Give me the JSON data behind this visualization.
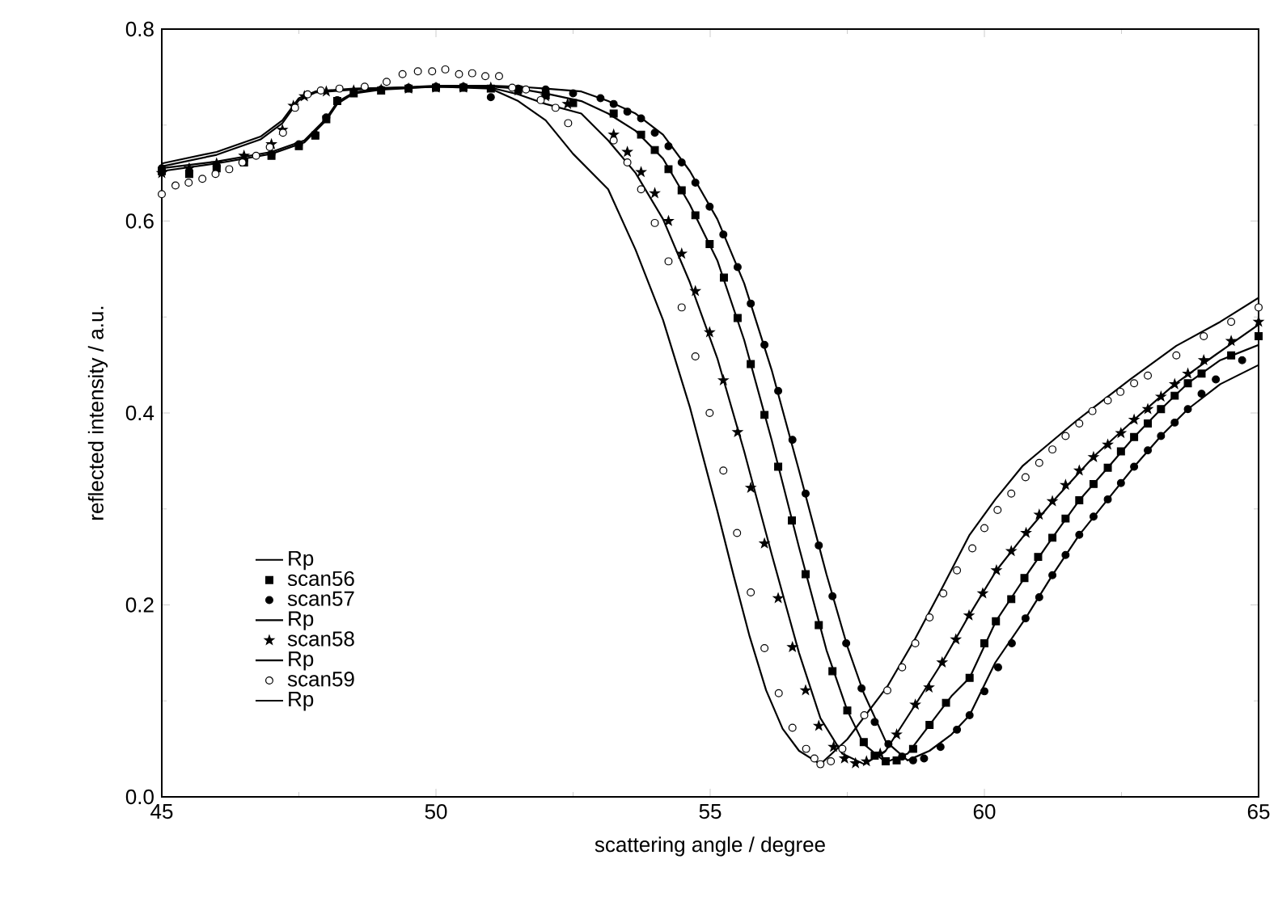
{
  "chart_data": {
    "type": "line",
    "xlabel": "scattering angle / degree",
    "ylabel": "reflected intensity / a.u.",
    "xlim": [
      45,
      65
    ],
    "ylim": [
      0,
      0.8
    ],
    "xticks": [
      45,
      50,
      55,
      60,
      65
    ],
    "yticks": [
      {
        "value": 0,
        "label": "0.0"
      },
      {
        "value": 0.2,
        "label": "0.2"
      },
      {
        "value": 0.4,
        "label": "0.4"
      },
      {
        "value": 0.6,
        "label": "0.6"
      },
      {
        "value": 0.8,
        "label": "0.8"
      }
    ],
    "grid": false,
    "legend": "bottom left",
    "series": [
      {
        "name": "Rp",
        "color": "#000000",
        "marker": "none",
        "line_style": "solid",
        "x": [
          45,
          46,
          47,
          47.6,
          48.0,
          48.2,
          48.5,
          49,
          50,
          51,
          51.5,
          52,
          52.65,
          53.14,
          53.64,
          54.14,
          54.63,
          55.13,
          55.62,
          56.12,
          56.62,
          57.12,
          57.5,
          57.8,
          58.2,
          58.6,
          59.0,
          59.4,
          59.73,
          60.21,
          60.73,
          61.24,
          61.73,
          62.25,
          62.73,
          63.22,
          63.71,
          64.3,
          65
        ],
        "values": [
          0.652,
          0.66,
          0.67,
          0.682,
          0.705,
          0.722,
          0.733,
          0.737,
          0.74,
          0.74,
          0.738,
          0.733,
          0.725,
          0.712,
          0.694,
          0.665,
          0.617,
          0.559,
          0.476,
          0.372,
          0.26,
          0.153,
          0.09,
          0.055,
          0.036,
          0.045,
          0.075,
          0.105,
          0.124,
          0.183,
          0.228,
          0.27,
          0.309,
          0.343,
          0.375,
          0.404,
          0.431,
          0.455,
          0.471
        ]
      },
      {
        "name": "scan56",
        "type": "scatter",
        "color": "#000000",
        "marker": "square",
        "x": [
          45,
          45.5,
          46,
          46.5,
          47,
          47.5,
          47.8,
          48,
          48.2,
          48.5,
          49,
          49.5,
          50,
          50.5,
          51,
          51.5,
          52,
          52.5,
          53.24,
          53.74,
          53.99,
          54.24,
          54.48,
          54.73,
          54.99,
          55.25,
          55.5,
          55.74,
          55.99,
          56.24,
          56.49,
          56.74,
          56.98,
          57.23,
          57.5,
          57.8,
          58.0,
          58.2,
          58.4,
          58.7,
          59.0,
          59.3,
          59.73,
          60.0,
          60.21,
          60.49,
          60.73,
          60.98,
          61.24,
          61.48,
          61.73,
          61.99,
          62.25,
          62.49,
          62.73,
          62.98,
          63.22,
          63.47,
          63.71,
          63.96,
          64.5,
          65
        ],
        "values": [
          0.652,
          0.649,
          0.655,
          0.661,
          0.668,
          0.678,
          0.689,
          0.706,
          0.725,
          0.733,
          0.736,
          0.738,
          0.739,
          0.739,
          0.738,
          0.737,
          0.731,
          0.723,
          0.712,
          0.69,
          0.674,
          0.654,
          0.632,
          0.606,
          0.576,
          0.541,
          0.499,
          0.451,
          0.398,
          0.344,
          0.288,
          0.232,
          0.179,
          0.131,
          0.09,
          0.057,
          0.043,
          0.037,
          0.038,
          0.05,
          0.075,
          0.098,
          0.124,
          0.16,
          0.183,
          0.206,
          0.228,
          0.25,
          0.27,
          0.29,
          0.309,
          0.326,
          0.343,
          0.36,
          0.375,
          0.389,
          0.404,
          0.418,
          0.431,
          0.441,
          0.46,
          0.48
        ]
      },
      {
        "name": "scan57",
        "type": "scatter",
        "color": "#000000",
        "marker": "circle",
        "x": [
          45,
          45.5,
          46,
          46.5,
          47,
          47.5,
          47.8,
          48,
          48.2,
          48.5,
          49,
          49.5,
          50,
          50.5,
          51,
          51.5,
          52,
          52.5,
          53,
          53.24,
          53.49,
          53.74,
          53.99,
          54.24,
          54.48,
          54.73,
          54.99,
          55.24,
          55.5,
          55.74,
          55.99,
          56.24,
          56.5,
          56.74,
          56.98,
          57.23,
          57.48,
          57.76,
          58.0,
          58.25,
          58.5,
          58.7,
          58.9,
          59.2,
          59.5,
          59.73,
          60.0,
          60.25,
          60.5,
          60.75,
          61.0,
          61.24,
          61.48,
          61.73,
          61.99,
          62.25,
          62.49,
          62.73,
          62.98,
          63.22,
          63.47,
          63.71,
          63.96,
          64.22,
          64.7
        ],
        "values": [
          0.655,
          0.652,
          0.657,
          0.663,
          0.67,
          0.68,
          0.69,
          0.708,
          0.726,
          null,
          0.737,
          0.739,
          0.74,
          0.74,
          0.729,
          0.738,
          0.737,
          0.733,
          0.728,
          0.722,
          0.714,
          0.707,
          0.692,
          0.678,
          0.661,
          0.64,
          0.615,
          0.586,
          0.552,
          0.514,
          0.471,
          0.423,
          0.372,
          0.316,
          0.262,
          0.209,
          0.16,
          0.113,
          0.078,
          0.055,
          0.042,
          0.038,
          0.04,
          0.052,
          0.07,
          0.085,
          0.11,
          0.135,
          0.16,
          0.186,
          0.208,
          0.231,
          0.252,
          0.273,
          0.292,
          0.31,
          0.327,
          0.344,
          0.361,
          0.376,
          0.39,
          0.404,
          0.42,
          0.435,
          0.455
        ]
      },
      {
        "name": "Rp",
        "color": "#000000",
        "marker": "none",
        "line_style": "solid",
        "x": [
          45,
          46,
          47,
          47.6,
          48.0,
          48.2,
          48.5,
          49,
          50,
          51,
          51.5,
          52,
          52.65,
          53.14,
          53.64,
          54.14,
          54.63,
          55.13,
          55.62,
          56.12,
          56.62,
          57.12,
          57.5,
          57.8,
          58.2,
          58.6,
          59.0,
          59.4,
          59.73,
          60.2,
          60.75,
          61.24,
          61.73,
          62.25,
          62.73,
          63.22,
          63.71,
          64.3,
          65
        ],
        "values": [
          0.655,
          0.662,
          0.672,
          0.684,
          0.707,
          0.724,
          0.734,
          0.738,
          0.741,
          0.741,
          0.74,
          0.738,
          0.735,
          0.725,
          0.712,
          0.69,
          0.652,
          0.602,
          0.535,
          0.445,
          0.34,
          0.232,
          0.157,
          0.108,
          0.058,
          0.038,
          0.048,
          0.065,
          0.085,
          0.14,
          0.186,
          0.231,
          0.273,
          0.31,
          0.344,
          0.376,
          0.404,
          0.43,
          0.45
        ]
      },
      {
        "name": "scan58",
        "type": "scatter",
        "color": "#000000",
        "marker": "star",
        "x": [
          45,
          45.5,
          46,
          46.5,
          47,
          47.2,
          47.4,
          47.6,
          48,
          48.5,
          49,
          49.5,
          50,
          50.5,
          51,
          51.5,
          52,
          52.4,
          53.24,
          53.49,
          53.74,
          53.99,
          54.24,
          54.48,
          54.73,
          54.99,
          55.24,
          55.5,
          55.74,
          55.99,
          56.24,
          56.5,
          56.74,
          56.98,
          57.25,
          57.45,
          57.65,
          57.85,
          58.1,
          58.4,
          58.74,
          58.99,
          59.23,
          59.48,
          59.72,
          59.97,
          60.22,
          60.49,
          60.76,
          61.0,
          61.24,
          61.48,
          61.73,
          61.99,
          62.25,
          62.49,
          62.73,
          62.98,
          63.22,
          63.47,
          63.71,
          64.0,
          64.5,
          65
        ],
        "values": [
          0.65,
          0.655,
          0.66,
          0.668,
          0.68,
          0.695,
          0.72,
          0.73,
          0.735,
          0.736,
          0.737,
          0.738,
          0.739,
          0.739,
          0.739,
          0.736,
          0.73,
          0.722,
          0.69,
          0.672,
          0.651,
          0.629,
          0.6,
          0.566,
          0.527,
          0.484,
          0.434,
          0.38,
          0.322,
          0.264,
          0.207,
          0.156,
          0.111,
          0.074,
          0.052,
          0.04,
          0.035,
          0.037,
          0.045,
          0.065,
          0.096,
          0.114,
          0.14,
          0.164,
          0.189,
          0.212,
          0.236,
          0.256,
          0.275,
          0.294,
          0.308,
          0.325,
          0.34,
          0.354,
          0.367,
          0.379,
          0.393,
          0.404,
          0.417,
          0.43,
          0.441,
          0.455,
          0.475,
          0.495
        ]
      },
      {
        "name": "Rp",
        "color": "#000000",
        "marker": "none",
        "line_style": "solid",
        "x": [
          45,
          46,
          46.8,
          47.2,
          47.5,
          47.8,
          48.5,
          50,
          51,
          51.5,
          52,
          52.65,
          53.14,
          53.64,
          54.14,
          54.63,
          55.13,
          55.62,
          56.12,
          56.62,
          57.01,
          57.41,
          57.81,
          58.2,
          58.74,
          59.23,
          59.72,
          60.22,
          60.76,
          61.25,
          62.0,
          62.73,
          63.47,
          64.2,
          65
        ],
        "values": [
          0.657,
          0.669,
          0.685,
          0.702,
          0.726,
          0.734,
          0.737,
          0.74,
          0.739,
          0.732,
          0.722,
          0.712,
          0.684,
          0.65,
          0.602,
          0.536,
          0.457,
          0.36,
          0.253,
          0.15,
          0.082,
          0.045,
          0.034,
          0.048,
          0.096,
          0.14,
          0.189,
          0.236,
          0.275,
          0.308,
          0.355,
          0.393,
          0.43,
          0.46,
          0.492
        ]
      },
      {
        "name": "scan59",
        "type": "scatter",
        "color": "#ffffff",
        "marker": "circle",
        "x": [
          45,
          45.25,
          45.49,
          45.74,
          45.98,
          46.23,
          46.47,
          46.72,
          46.97,
          47.21,
          47.43,
          47.66,
          47.9,
          48.24,
          48.7,
          49.1,
          49.39,
          49.67,
          49.93,
          50.17,
          50.42,
          50.66,
          50.9,
          51.15,
          51.39,
          51.64,
          51.91,
          52.18,
          52.41,
          53.24,
          53.49,
          53.74,
          53.99,
          54.24,
          54.48,
          54.73,
          54.99,
          55.24,
          55.49,
          55.74,
          55.99,
          56.25,
          56.5,
          56.75,
          56.9,
          57.01,
          57.2,
          57.41,
          57.81,
          58.23,
          58.5,
          58.74,
          59.0,
          59.25,
          59.5,
          59.78,
          60.0,
          60.24,
          60.49,
          60.75,
          61.0,
          61.24,
          61.48,
          61.73,
          61.97,
          62.25,
          62.48,
          62.73,
          62.98,
          63.5,
          64.0,
          64.5,
          65
        ],
        "values": [
          0.628,
          0.637,
          0.64,
          0.644,
          0.649,
          0.654,
          0.661,
          0.668,
          0.677,
          0.692,
          0.718,
          0.732,
          0.736,
          0.738,
          0.74,
          0.745,
          0.753,
          0.756,
          0.756,
          0.758,
          0.753,
          0.754,
          0.751,
          0.751,
          0.739,
          0.737,
          0.726,
          0.718,
          0.702,
          0.684,
          0.661,
          0.633,
          0.598,
          0.558,
          0.51,
          0.459,
          0.4,
          0.34,
          0.275,
          0.213,
          0.155,
          0.108,
          0.072,
          0.05,
          0.04,
          0.034,
          0.037,
          0.05,
          0.085,
          0.111,
          0.135,
          0.16,
          0.187,
          0.212,
          0.236,
          0.259,
          0.28,
          0.299,
          0.316,
          0.333,
          0.348,
          0.362,
          0.376,
          0.389,
          0.402,
          0.413,
          0.422,
          0.431,
          0.439,
          0.46,
          0.48,
          0.495,
          0.51
        ]
      },
      {
        "name": "Rp",
        "color": "#000000",
        "marker": "none",
        "line_style": "solid",
        "x": [
          45,
          46,
          46.8,
          47.2,
          47.5,
          47.8,
          48.5,
          50,
          51,
          51.5,
          52,
          52.5,
          53.14,
          53.64,
          54.14,
          54.63,
          55.13,
          55.43,
          55.72,
          56.02,
          56.32,
          56.62,
          57.01,
          57.5,
          58.23,
          58.74,
          59.25,
          59.73,
          60.2,
          60.7,
          61.68,
          62.66,
          63.5,
          64.3,
          65
        ],
        "values": [
          0.66,
          0.672,
          0.688,
          0.705,
          0.728,
          0.735,
          0.738,
          0.74,
          0.738,
          0.725,
          0.705,
          0.67,
          0.633,
          0.57,
          0.497,
          0.406,
          0.298,
          0.23,
          0.167,
          0.111,
          0.071,
          0.048,
          0.034,
          0.06,
          0.115,
          0.165,
          0.22,
          0.273,
          0.31,
          0.345,
          0.392,
          0.435,
          0.47,
          0.495,
          0.52
        ]
      }
    ]
  }
}
